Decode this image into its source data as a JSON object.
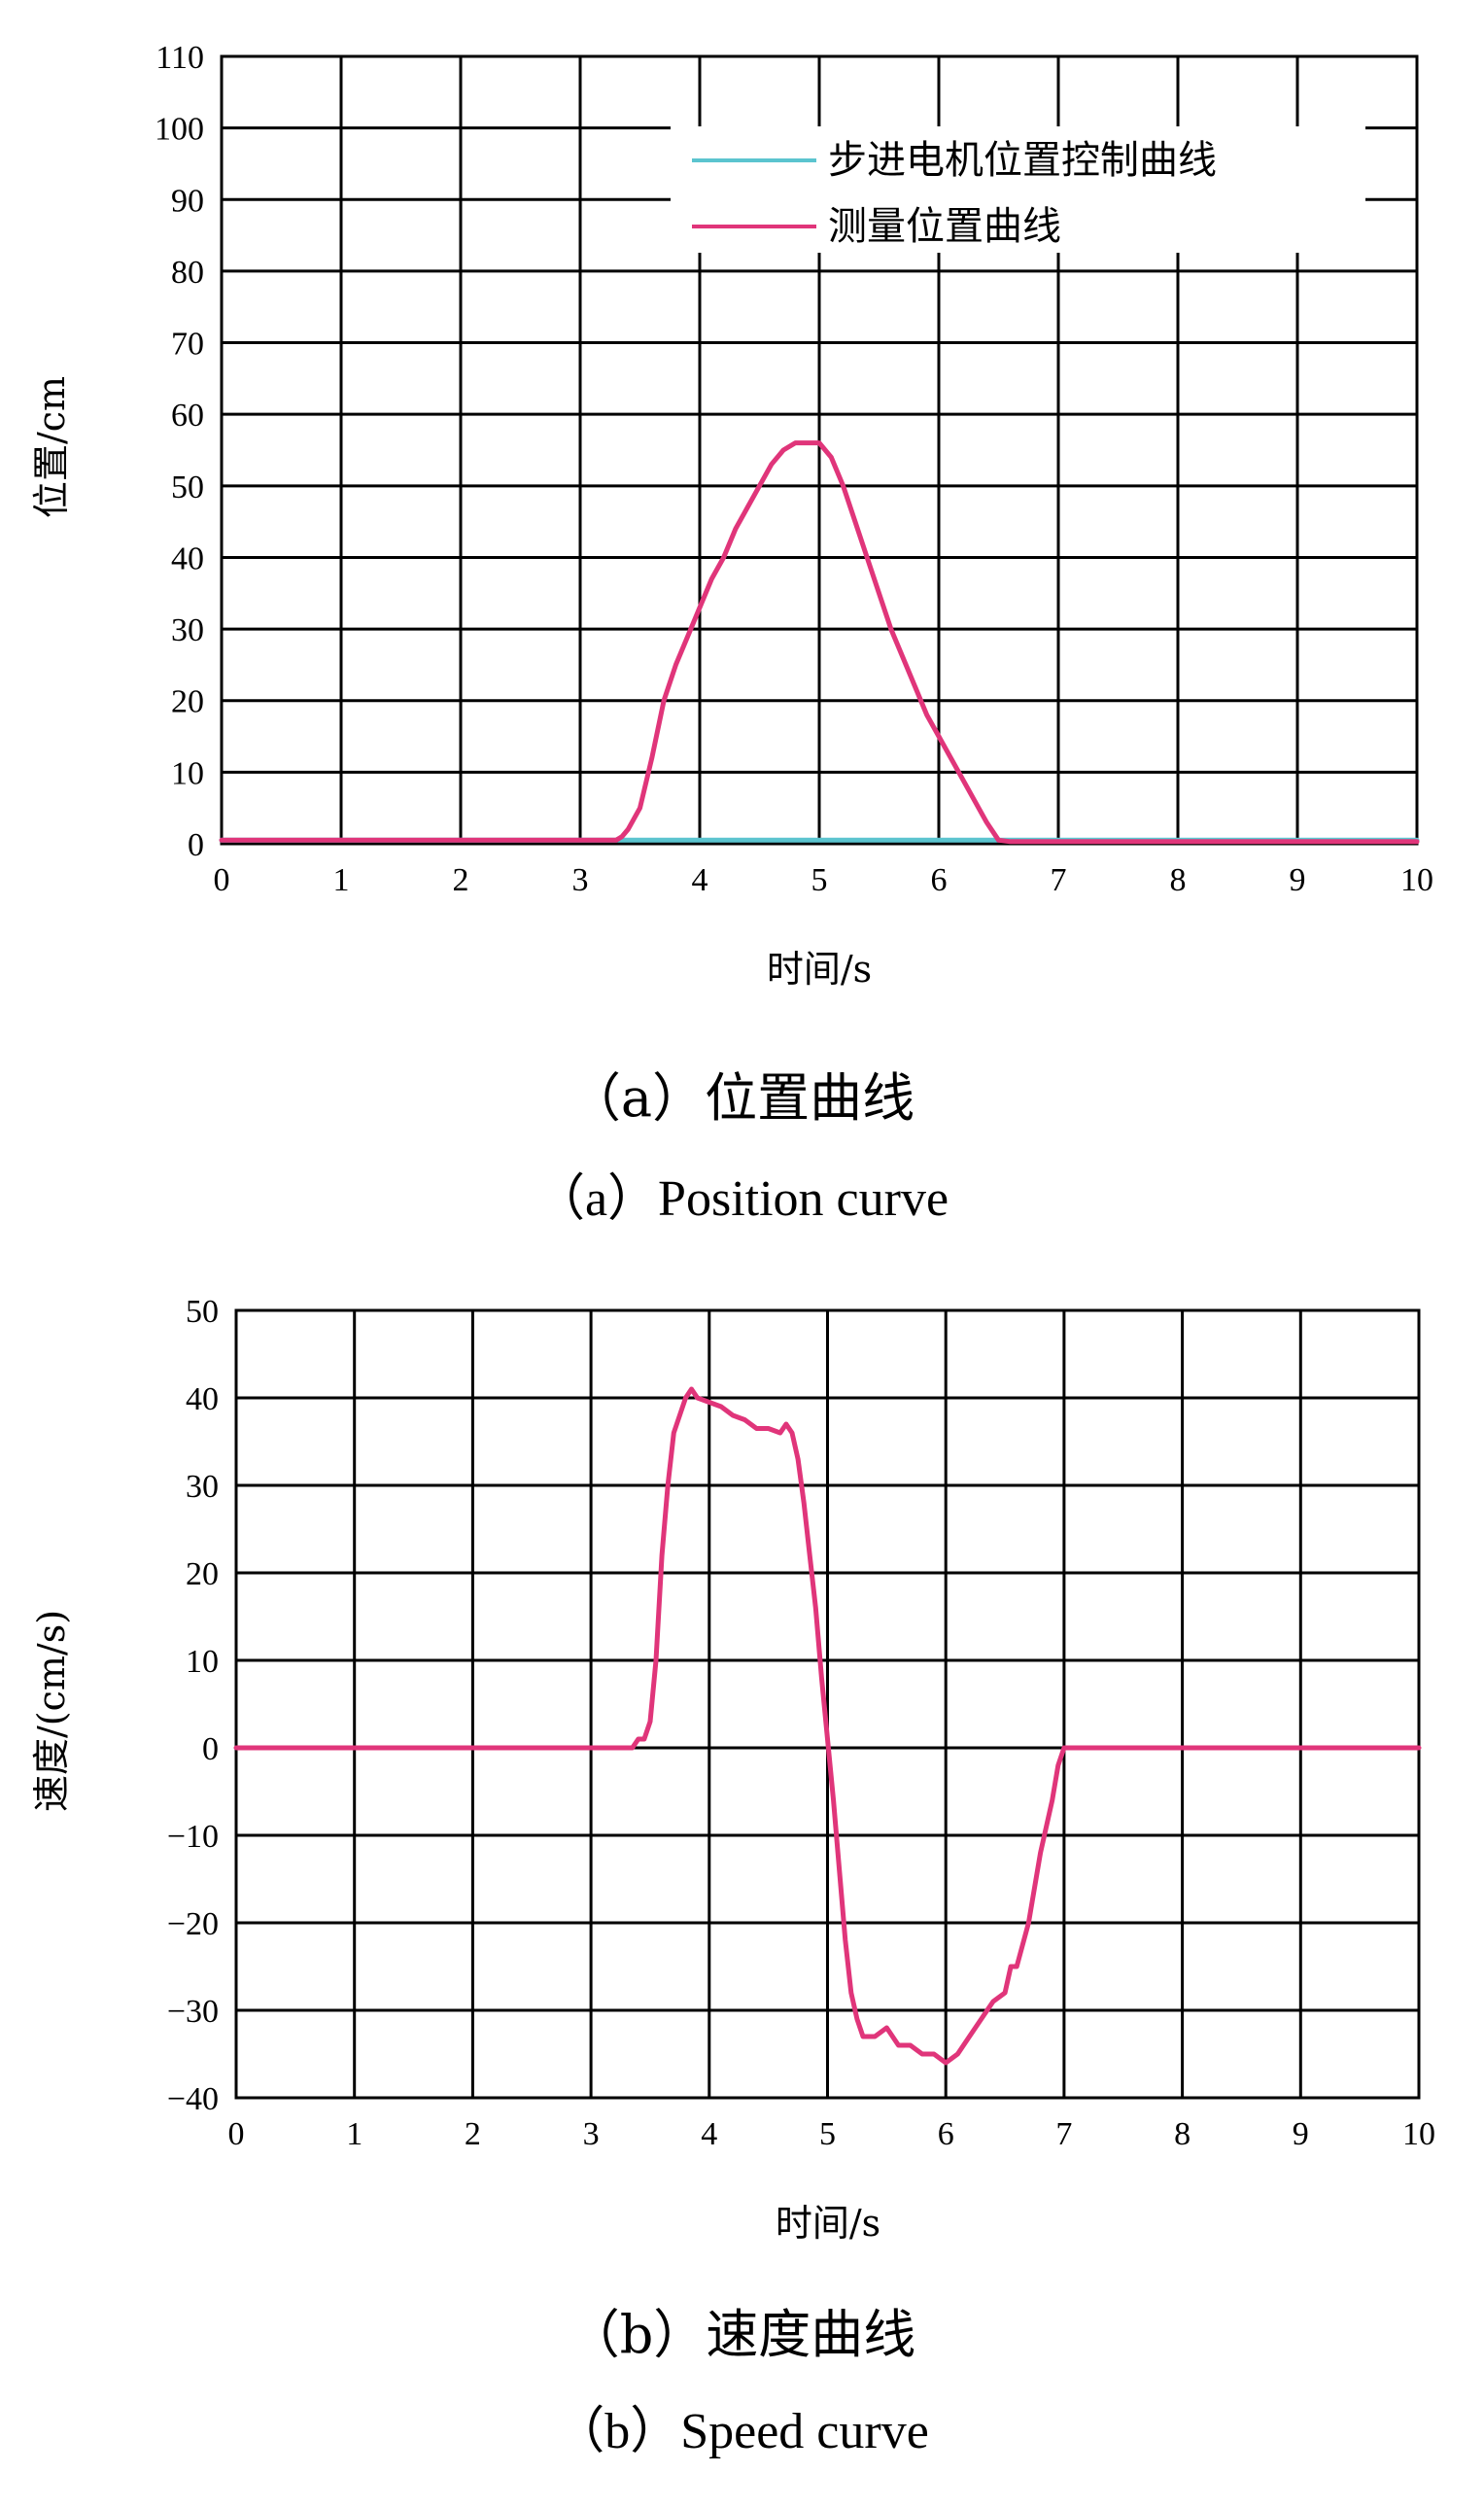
{
  "chart_data": [
    {
      "type": "line",
      "xlabel": "时间/s",
      "ylabel": "位置/cm",
      "xlim": [
        0,
        10
      ],
      "ylim": [
        0,
        110
      ],
      "x_ticks": [
        "0",
        "1",
        "2",
        "3",
        "4",
        "5",
        "6",
        "7",
        "8",
        "9",
        "10"
      ],
      "y_ticks": [
        "0",
        "10",
        "20",
        "30",
        "40",
        "50",
        "60",
        "70",
        "80",
        "90",
        "100",
        "110"
      ],
      "grid": true,
      "legend_position": "top-right",
      "caption_cn": "（a）位置曲线",
      "caption_en": "（a）Position curve",
      "series": [
        {
          "name": "步进电机位置控制曲线",
          "color": "#5bc4cf",
          "x": [
            0,
            3.35,
            3.4,
            6.6,
            6.65,
            10
          ],
          "y": [
            0.5,
            0.5,
            0.5,
            0.5,
            0.5,
            0.5
          ]
        },
        {
          "name": "测量位置曲线",
          "color": "#e0357a",
          "x": [
            0,
            3.3,
            3.35,
            3.4,
            3.5,
            3.6,
            3.7,
            3.8,
            3.9,
            4.0,
            4.1,
            4.2,
            4.3,
            4.4,
            4.5,
            4.6,
            4.7,
            4.8,
            4.9,
            5.0,
            5.1,
            5.2,
            5.3,
            5.4,
            5.5,
            5.6,
            5.7,
            5.8,
            5.9,
            6.0,
            6.1,
            6.2,
            6.3,
            6.4,
            6.5,
            6.6,
            7.0,
            10
          ],
          "y": [
            0.5,
            0.5,
            1,
            2,
            5,
            12,
            20,
            25,
            29,
            33,
            37,
            40,
            44,
            47,
            50,
            53,
            55,
            56,
            56,
            56,
            54,
            50,
            45,
            40,
            35,
            30,
            26,
            22,
            18,
            15,
            12,
            9,
            6,
            3,
            0.5,
            0.3,
            0.3,
            0.3
          ]
        }
      ]
    },
    {
      "type": "line",
      "xlabel": "时间/s",
      "ylabel": "速度/(cm/s)",
      "xlim": [
        0,
        10
      ],
      "ylim": [
        -40,
        50
      ],
      "x_ticks": [
        "0",
        "1",
        "2",
        "3",
        "4",
        "5",
        "6",
        "7",
        "8",
        "9",
        "10"
      ],
      "y_ticks": [
        "−40",
        "−30",
        "−20",
        "−10",
        "0",
        "10",
        "20",
        "30",
        "40",
        "50"
      ],
      "grid": true,
      "caption_cn": "（b）速度曲线",
      "caption_en": "（b）Speed curve",
      "series": [
        {
          "color": "#e0357a",
          "x": [
            0,
            3.35,
            3.4,
            3.45,
            3.5,
            3.55,
            3.6,
            3.65,
            3.7,
            3.75,
            3.8,
            3.85,
            3.9,
            4.0,
            4.1,
            4.2,
            4.3,
            4.4,
            4.5,
            4.6,
            4.65,
            4.7,
            4.75,
            4.8,
            4.85,
            4.9,
            4.95,
            5.0,
            5.05,
            5.1,
            5.15,
            5.2,
            5.25,
            5.3,
            5.4,
            5.5,
            5.6,
            5.7,
            5.8,
            5.9,
            6.0,
            6.1,
            6.2,
            6.3,
            6.4,
            6.5,
            6.55,
            6.6,
            6.7,
            6.8,
            6.9,
            6.95,
            7.0,
            10
          ],
          "y": [
            0,
            0,
            1,
            1,
            3,
            10,
            22,
            30,
            36,
            38,
            40,
            41,
            40,
            39.5,
            39,
            38,
            37.5,
            36.5,
            36.5,
            36,
            37,
            36,
            33,
            28,
            22,
            16,
            8,
            1,
            -6,
            -14,
            -22,
            -28,
            -31,
            -33,
            -33,
            -32,
            -34,
            -34,
            -35,
            -35,
            -36,
            -35,
            -33,
            -31,
            -29,
            -28,
            -25,
            -25,
            -20,
            -12,
            -6,
            -2,
            0,
            0
          ]
        }
      ]
    }
  ]
}
